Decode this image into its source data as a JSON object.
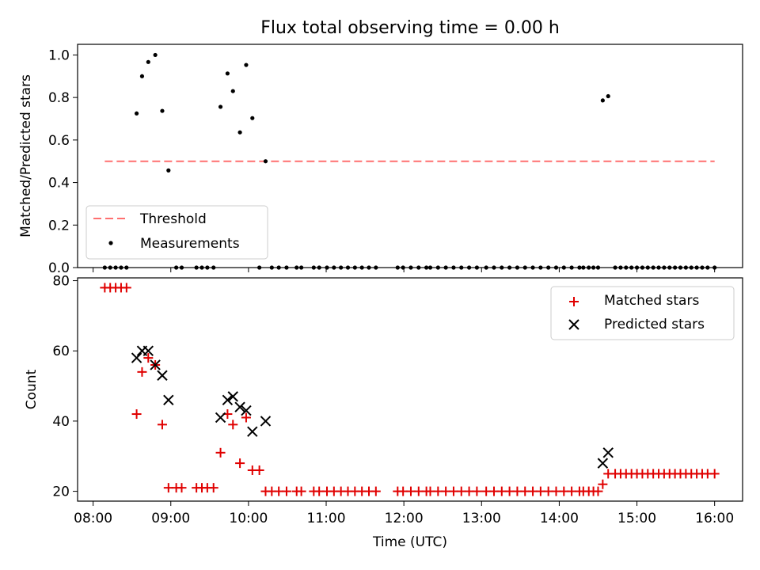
{
  "figure": {
    "title": "Flux total observing time = 0.00 h"
  },
  "chart_data": [
    {
      "type": "scatter",
      "title": "Flux total observing time = 0.00 h",
      "xlabel": "",
      "ylabel": "Matched/Predicted stars",
      "xlim": [
        7.8,
        16.36
      ],
      "ylim": [
        0.0,
        1.05
      ],
      "xticks": [
        8,
        9,
        10,
        11,
        12,
        13,
        14,
        15,
        16
      ],
      "yticks": [
        0.0,
        0.2,
        0.4,
        0.6,
        0.8,
        1.0
      ],
      "ytick_labels": [
        "0.0",
        "0.2",
        "0.4",
        "0.6",
        "0.8",
        "1.0"
      ],
      "legend_position": "lower-left",
      "threshold": {
        "name": "Threshold",
        "value": 0.5,
        "x": [
          8.15,
          16.0
        ],
        "color": "#ff7070"
      },
      "series": [
        {
          "name": "Measurements",
          "color": "#000000",
          "points": [
            [
              8.15,
              0
            ],
            [
              8.22,
              0
            ],
            [
              8.29,
              0
            ],
            [
              8.36,
              0
            ],
            [
              8.43,
              0
            ],
            [
              8.56,
              0.725
            ],
            [
              8.63,
              0.9
            ],
            [
              8.71,
              0.967
            ],
            [
              8.8,
              1.0
            ],
            [
              8.89,
              0.737
            ],
            [
              8.97,
              0.457
            ],
            [
              9.07,
              0
            ],
            [
              9.14,
              0
            ],
            [
              9.33,
              0
            ],
            [
              9.4,
              0
            ],
            [
              9.47,
              0
            ],
            [
              9.55,
              0
            ],
            [
              9.64,
              0.756
            ],
            [
              9.73,
              0.913
            ],
            [
              9.8,
              0.83
            ],
            [
              9.89,
              0.636
            ],
            [
              9.97,
              0.953
            ],
            [
              10.05,
              0.703
            ],
            [
              10.14,
              0
            ],
            [
              10.22,
              0.5
            ],
            [
              10.3,
              0
            ],
            [
              10.39,
              0
            ],
            [
              10.49,
              0
            ],
            [
              10.62,
              0
            ],
            [
              10.68,
              0
            ],
            [
              10.84,
              0
            ],
            [
              10.91,
              0
            ],
            [
              11.01,
              0
            ],
            [
              11.1,
              0
            ],
            [
              11.19,
              0
            ],
            [
              11.28,
              0
            ],
            [
              11.37,
              0
            ],
            [
              11.46,
              0
            ],
            [
              11.55,
              0
            ],
            [
              11.64,
              0
            ],
            [
              11.92,
              0
            ],
            [
              11.99,
              0
            ],
            [
              12.09,
              0
            ],
            [
              12.19,
              0
            ],
            [
              12.29,
              0
            ],
            [
              12.34,
              0
            ],
            [
              12.44,
              0
            ],
            [
              12.54,
              0
            ],
            [
              12.64,
              0
            ],
            [
              12.74,
              0
            ],
            [
              12.84,
              0
            ],
            [
              12.94,
              0
            ],
            [
              13.06,
              0
            ],
            [
              13.16,
              0
            ],
            [
              13.26,
              0
            ],
            [
              13.36,
              0
            ],
            [
              13.46,
              0
            ],
            [
              13.56,
              0
            ],
            [
              13.66,
              0
            ],
            [
              13.76,
              0
            ],
            [
              13.86,
              0
            ],
            [
              13.96,
              0
            ],
            [
              14.06,
              0
            ],
            [
              14.16,
              0
            ],
            [
              14.26,
              0
            ],
            [
              14.31,
              0
            ],
            [
              14.38,
              0
            ],
            [
              14.44,
              0
            ],
            [
              14.5,
              0
            ],
            [
              14.56,
              0.786
            ],
            [
              14.63,
              0.806
            ],
            [
              14.72,
              0
            ],
            [
              14.79,
              0
            ],
            [
              14.86,
              0
            ],
            [
              14.93,
              0
            ],
            [
              15.0,
              0
            ],
            [
              15.07,
              0
            ],
            [
              15.14,
              0
            ],
            [
              15.21,
              0
            ],
            [
              15.28,
              0
            ],
            [
              15.35,
              0
            ],
            [
              15.42,
              0
            ],
            [
              15.49,
              0
            ],
            [
              15.56,
              0
            ],
            [
              15.63,
              0
            ],
            [
              15.7,
              0
            ],
            [
              15.77,
              0
            ],
            [
              15.84,
              0
            ],
            [
              15.91,
              0
            ],
            [
              16.0,
              0
            ]
          ]
        }
      ]
    },
    {
      "type": "scatter",
      "title": "",
      "xlabel": "Time (UTC)",
      "ylabel": "Count",
      "xlim": [
        7.8,
        16.36
      ],
      "ylim": [
        17.2,
        80.8
      ],
      "xticks": [
        8,
        9,
        10,
        11,
        12,
        13,
        14,
        15,
        16
      ],
      "xtick_labels": [
        "08:00",
        "09:00",
        "10:00",
        "11:00",
        "12:00",
        "13:00",
        "14:00",
        "15:00",
        "16:00"
      ],
      "yticks": [
        20,
        40,
        60,
        80
      ],
      "ytick_labels": [
        "20",
        "40",
        "60",
        "80"
      ],
      "legend_position": "top-right",
      "series": [
        {
          "name": "Matched stars",
          "marker": "+",
          "color": "#e00000",
          "points": [
            [
              8.15,
              78
            ],
            [
              8.22,
              78
            ],
            [
              8.29,
              78
            ],
            [
              8.36,
              78
            ],
            [
              8.43,
              78
            ],
            [
              8.56,
              42
            ],
            [
              8.63,
              54
            ],
            [
              8.71,
              58
            ],
            [
              8.8,
              56
            ],
            [
              8.89,
              39
            ],
            [
              8.97,
              21
            ],
            [
              9.07,
              21
            ],
            [
              9.14,
              21
            ],
            [
              9.33,
              21
            ],
            [
              9.4,
              21
            ],
            [
              9.47,
              21
            ],
            [
              9.55,
              21
            ],
            [
              9.64,
              31
            ],
            [
              9.73,
              42
            ],
            [
              9.8,
              39
            ],
            [
              9.89,
              28
            ],
            [
              9.97,
              41
            ],
            [
              10.05,
              26
            ],
            [
              10.14,
              26
            ],
            [
              10.22,
              20
            ],
            [
              10.3,
              20
            ],
            [
              10.39,
              20
            ],
            [
              10.49,
              20
            ],
            [
              10.62,
              20
            ],
            [
              10.68,
              20
            ],
            [
              10.84,
              20
            ],
            [
              10.91,
              20
            ],
            [
              11.01,
              20
            ],
            [
              11.1,
              20
            ],
            [
              11.19,
              20
            ],
            [
              11.28,
              20
            ],
            [
              11.37,
              20
            ],
            [
              11.46,
              20
            ],
            [
              11.55,
              20
            ],
            [
              11.64,
              20
            ],
            [
              11.92,
              20
            ],
            [
              11.99,
              20
            ],
            [
              12.09,
              20
            ],
            [
              12.19,
              20
            ],
            [
              12.29,
              20
            ],
            [
              12.34,
              20
            ],
            [
              12.44,
              20
            ],
            [
              12.54,
              20
            ],
            [
              12.64,
              20
            ],
            [
              12.74,
              20
            ],
            [
              12.84,
              20
            ],
            [
              12.94,
              20
            ],
            [
              13.06,
              20
            ],
            [
              13.16,
              20
            ],
            [
              13.26,
              20
            ],
            [
              13.36,
              20
            ],
            [
              13.46,
              20
            ],
            [
              13.56,
              20
            ],
            [
              13.66,
              20
            ],
            [
              13.76,
              20
            ],
            [
              13.86,
              20
            ],
            [
              13.96,
              20
            ],
            [
              14.06,
              20
            ],
            [
              14.16,
              20
            ],
            [
              14.26,
              20
            ],
            [
              14.31,
              20
            ],
            [
              14.38,
              20
            ],
            [
              14.44,
              20
            ],
            [
              14.5,
              20
            ],
            [
              14.56,
              22
            ],
            [
              14.63,
              25
            ],
            [
              14.72,
              25
            ],
            [
              14.79,
              25
            ],
            [
              14.86,
              25
            ],
            [
              14.93,
              25
            ],
            [
              15.0,
              25
            ],
            [
              15.07,
              25
            ],
            [
              15.14,
              25
            ],
            [
              15.21,
              25
            ],
            [
              15.28,
              25
            ],
            [
              15.35,
              25
            ],
            [
              15.42,
              25
            ],
            [
              15.49,
              25
            ],
            [
              15.56,
              25
            ],
            [
              15.63,
              25
            ],
            [
              15.7,
              25
            ],
            [
              15.77,
              25
            ],
            [
              15.84,
              25
            ],
            [
              15.91,
              25
            ],
            [
              16.0,
              25
            ]
          ]
        },
        {
          "name": "Predicted stars",
          "marker": "x",
          "color": "#000000",
          "points": [
            [
              8.56,
              58
            ],
            [
              8.63,
              60
            ],
            [
              8.71,
              60
            ],
            [
              8.8,
              56
            ],
            [
              8.89,
              53
            ],
            [
              8.97,
              46
            ],
            [
              9.64,
              41
            ],
            [
              9.73,
              46
            ],
            [
              9.8,
              47
            ],
            [
              9.89,
              44
            ],
            [
              9.97,
              43
            ],
            [
              10.05,
              37
            ],
            [
              10.22,
              40
            ],
            [
              14.56,
              28
            ],
            [
              14.63,
              31
            ]
          ]
        }
      ]
    }
  ]
}
